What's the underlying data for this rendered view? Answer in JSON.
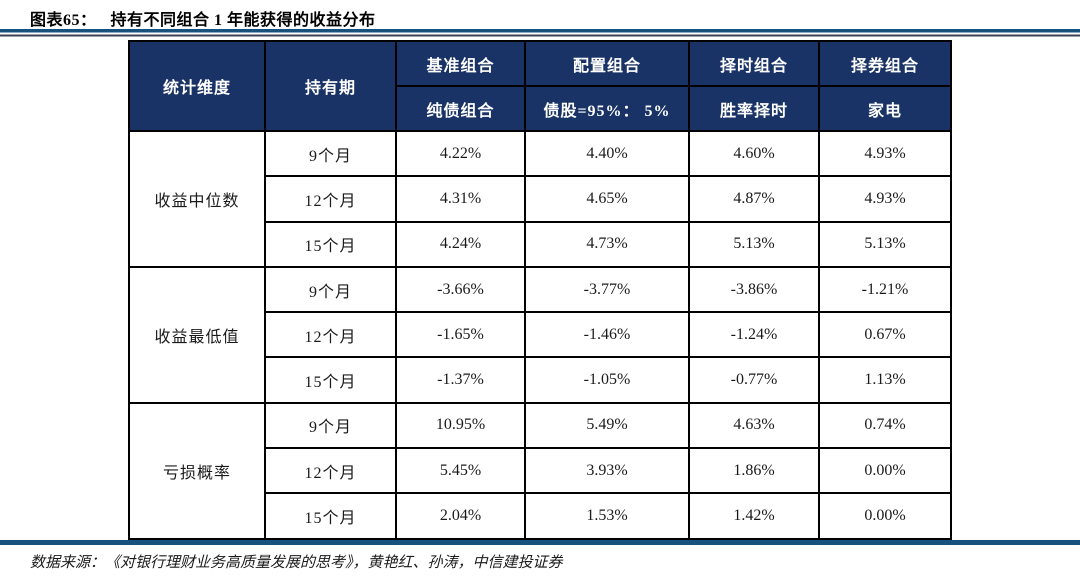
{
  "title": {
    "label": "图表65：",
    "text": "持有不同组合 1 年能获得的收益分布"
  },
  "colors": {
    "header_bg": "#1a3366",
    "header_text": "#ffffff",
    "rule_blue": "#17527f",
    "rule_dark": "#3c4254",
    "cell_border": "#000000",
    "body_text": "#1a1a1a"
  },
  "table": {
    "header": {
      "col_dimension": "统计维度",
      "col_period": "持有期",
      "portfolios": [
        {
          "top": "基准组合",
          "bottom": "纯债组合"
        },
        {
          "top": "配置组合",
          "bottom": "债股=95%： 5%"
        },
        {
          "top": "择时组合",
          "bottom": "胜率择时"
        },
        {
          "top": "择券组合",
          "bottom": "家电"
        }
      ]
    },
    "groups": [
      {
        "dimension": "收益中位数",
        "rows": [
          {
            "period": "9个月",
            "values": [
              "4.22%",
              "4.40%",
              "4.60%",
              "4.93%"
            ]
          },
          {
            "period": "12个月",
            "values": [
              "4.31%",
              "4.65%",
              "4.87%",
              "4.93%"
            ]
          },
          {
            "period": "15个月",
            "values": [
              "4.24%",
              "4.73%",
              "5.13%",
              "5.13%"
            ]
          }
        ]
      },
      {
        "dimension": "收益最低值",
        "rows": [
          {
            "period": "9个月",
            "values": [
              "-3.66%",
              "-3.77%",
              "-3.86%",
              "-1.21%"
            ]
          },
          {
            "period": "12个月",
            "values": [
              "-1.65%",
              "-1.46%",
              "-1.24%",
              "0.67%"
            ]
          },
          {
            "period": "15个月",
            "values": [
              "-1.37%",
              "-1.05%",
              "-0.77%",
              "1.13%"
            ]
          }
        ]
      },
      {
        "dimension": "亏损概率",
        "rows": [
          {
            "period": "9个月",
            "values": [
              "10.95%",
              "5.49%",
              "4.63%",
              "0.74%"
            ]
          },
          {
            "period": "12个月",
            "values": [
              "5.45%",
              "3.93%",
              "1.86%",
              "0.00%"
            ]
          },
          {
            "period": "15个月",
            "values": [
              "2.04%",
              "1.53%",
              "1.42%",
              "0.00%"
            ]
          }
        ]
      }
    ]
  },
  "footer": {
    "source": "数据来源：《对银行理财业务高质量发展的思考》，黄艳红、孙涛，中信建投证券"
  }
}
